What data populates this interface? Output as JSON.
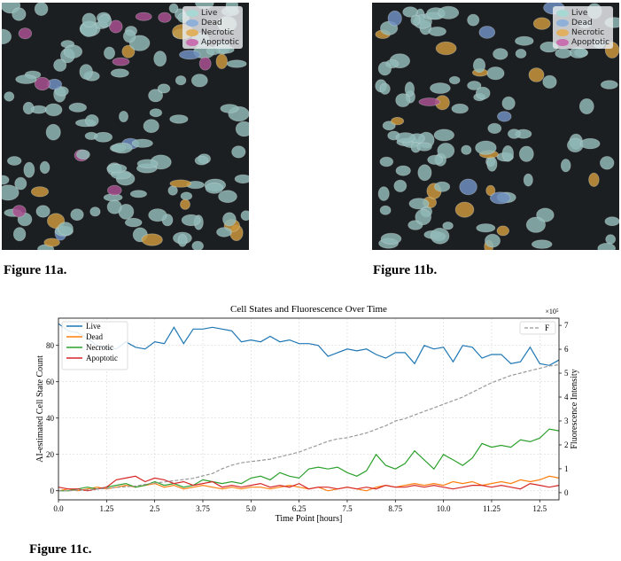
{
  "figures": {
    "a": {
      "caption": "Figure 11a.",
      "legend": [
        {
          "label": "Live",
          "color": "#a8d8d4"
        },
        {
          "label": "Dead",
          "color": "#8fb0d8"
        },
        {
          "label": "Necrotic",
          "color": "#e0b060"
        },
        {
          "label": "Apoptotic",
          "color": "#c870b0"
        }
      ]
    },
    "b": {
      "caption": "Figure 11b.",
      "legend": [
        {
          "label": "Live",
          "color": "#a8d8d4"
        },
        {
          "label": "Dead",
          "color": "#8fb0d8"
        },
        {
          "label": "Necrotic",
          "color": "#e0b060"
        },
        {
          "label": "Apoptotic",
          "color": "#c870b0"
        }
      ]
    },
    "c": {
      "caption": "Figure 11c."
    }
  },
  "chart_data": {
    "type": "line",
    "title": "Cell States and Fluorescence Over Time",
    "xlabel": "Time Point [hours]",
    "ylabel_left": "AI-estimated Cell State Count",
    "ylabel_right": "Fluorescence Intensity",
    "right_axis_offset_label": "×10⁵",
    "xlim": [
      0,
      13
    ],
    "ylim_left": [
      -5,
      95
    ],
    "ylim_right": [
      -0.3,
      7.3
    ],
    "x_ticks": [
      "0.0",
      "1.25",
      "2.5",
      "3.75",
      "5.0",
      "6.25",
      "7.5",
      "8.75",
      "10.0",
      "11.25",
      "12.5"
    ],
    "y_ticks_left": [
      "0",
      "20",
      "40",
      "60",
      "80"
    ],
    "y_ticks_right": [
      "0",
      "1",
      "2",
      "3",
      "4",
      "5",
      "6",
      "7"
    ],
    "grid": true,
    "legend_left": "top-left",
    "legend_right": "top-right",
    "x": [
      0.0,
      0.25,
      0.5,
      0.75,
      1.0,
      1.25,
      1.5,
      1.75,
      2.0,
      2.25,
      2.5,
      2.75,
      3.0,
      3.25,
      3.5,
      3.75,
      4.0,
      4.25,
      4.5,
      4.75,
      5.0,
      5.25,
      5.5,
      5.75,
      6.0,
      6.25,
      6.5,
      6.75,
      7.0,
      7.25,
      7.5,
      7.75,
      8.0,
      8.25,
      8.5,
      8.75,
      9.0,
      9.25,
      9.5,
      9.75,
      10.0,
      10.25,
      10.5,
      10.75,
      11.0,
      11.25,
      11.5,
      11.75,
      12.0,
      12.25,
      12.5,
      12.75,
      13.0
    ],
    "series": [
      {
        "name": "Live",
        "color": "#1f77b4",
        "axis": "left",
        "values": [
          92,
          88,
          87,
          84,
          80,
          79,
          78,
          82,
          79,
          78,
          82,
          81,
          90,
          81,
          89,
          89,
          90,
          89,
          88,
          82,
          83,
          82,
          85,
          82,
          83,
          81,
          81,
          80,
          74,
          76,
          78,
          77,
          78,
          75,
          73,
          76,
          76,
          70,
          80,
          78,
          79,
          71,
          80,
          79,
          73,
          75,
          75,
          70,
          71,
          79,
          70,
          69,
          72
        ]
      },
      {
        "name": "Dead",
        "color": "#ff7f0e",
        "axis": "left",
        "values": [
          0,
          1,
          0,
          1,
          2,
          1,
          2,
          3,
          2,
          3,
          4,
          2,
          3,
          1,
          2,
          3,
          2,
          1,
          2,
          1,
          2,
          2,
          1,
          2,
          3,
          2,
          1,
          2,
          0,
          1,
          2,
          1,
          0,
          2,
          3,
          2,
          3,
          4,
          3,
          4,
          3,
          5,
          4,
          5,
          3,
          4,
          5,
          4,
          6,
          5,
          6,
          8,
          7
        ]
      },
      {
        "name": "Necrotic",
        "color": "#2ca02c",
        "axis": "left",
        "values": [
          0,
          0,
          1,
          2,
          1,
          2,
          3,
          4,
          2,
          3,
          5,
          3,
          4,
          2,
          3,
          6,
          5,
          4,
          5,
          4,
          7,
          8,
          6,
          10,
          8,
          7,
          12,
          13,
          12,
          13,
          10,
          8,
          11,
          20,
          14,
          12,
          15,
          22,
          17,
          12,
          20,
          17,
          14,
          18,
          26,
          24,
          25,
          24,
          28,
          27,
          29,
          34,
          33
        ]
      },
      {
        "name": "Apoptotic",
        "color": "#d62728",
        "axis": "left",
        "values": [
          2,
          1,
          1,
          0,
          1,
          2,
          6,
          7,
          8,
          5,
          7,
          6,
          4,
          5,
          3,
          4,
          5,
          2,
          3,
          2,
          3,
          4,
          2,
          3,
          2,
          4,
          1,
          2,
          2,
          1,
          2,
          1,
          2,
          1,
          3,
          2,
          2,
          3,
          2,
          3,
          2,
          1,
          2,
          3,
          3,
          2,
          3,
          2,
          1,
          4,
          3,
          2,
          3
        ]
      },
      {
        "name": "F",
        "color": "#999999",
        "axis": "right",
        "dashed": true,
        "values": [
          0.08,
          0.08,
          0.1,
          0.12,
          0.15,
          0.18,
          0.22,
          0.25,
          0.28,
          0.35,
          0.4,
          0.45,
          0.5,
          0.55,
          0.6,
          0.7,
          0.8,
          1.0,
          1.15,
          1.25,
          1.3,
          1.35,
          1.4,
          1.5,
          1.6,
          1.7,
          1.85,
          2.0,
          2.15,
          2.25,
          2.3,
          2.4,
          2.5,
          2.65,
          2.8,
          3.0,
          3.1,
          3.25,
          3.4,
          3.55,
          3.7,
          3.85,
          4.0,
          4.2,
          4.4,
          4.6,
          4.75,
          4.9,
          5.0,
          5.1,
          5.2,
          5.3,
          5.35
        ]
      }
    ]
  }
}
